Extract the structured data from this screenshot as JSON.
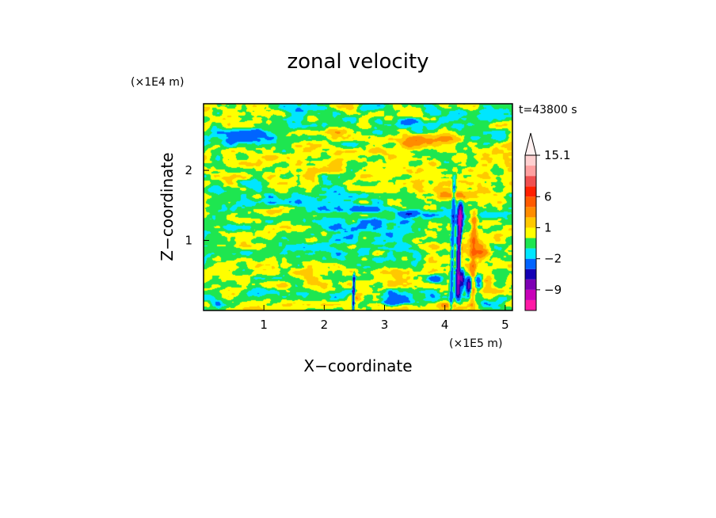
{
  "chart_data": {
    "type": "heatmap",
    "title": "zonal velocity",
    "xlabel": "X−coordinate",
    "ylabel": "Z−coordinate",
    "x_scale_label": "(×1E5 m)",
    "y_scale_label": "(×1E4 m)",
    "time_label": "t=43800 s",
    "xlim": [
      0,
      5.12
    ],
    "ylim": [
      0,
      2.95
    ],
    "x_ticks": [
      1,
      2,
      3,
      4,
      5
    ],
    "y_ticks": [
      1,
      2
    ],
    "colorbar": {
      "levels": [
        -15,
        -12,
        -9,
        -6,
        -4,
        -2,
        -1,
        0,
        1,
        2,
        4,
        6,
        9,
        12,
        15.1
      ],
      "colors": [
        "#ff1aa5",
        "#c800b8",
        "#7d00b4",
        "#1400b4",
        "#0064ff",
        "#00e6ff",
        "#1ee650",
        "#ffff00",
        "#ffc800",
        "#ff8c00",
        "#ff5a00",
        "#ff2000",
        "#f05050",
        "#ffa0a0",
        "#ffd0d0"
      ],
      "labels": [
        {
          "value": 15.1,
          "text": "15.1"
        },
        {
          "value": 6,
          "text": "6"
        },
        {
          "value": 1,
          "text": "1"
        },
        {
          "value": -2,
          "text": "−2"
        },
        {
          "value": -9,
          "text": "−9"
        }
      ],
      "extend_max": true
    },
    "features": [
      {
        "kind": "band",
        "x0": 0.0,
        "x1": 5.12,
        "z": 0.15,
        "thick": 0.1,
        "value": -1.5
      },
      {
        "kind": "band",
        "x0": 0.0,
        "x1": 3.6,
        "z": 0.75,
        "thick": 0.2,
        "value": -1.0
      },
      {
        "kind": "band",
        "x0": 0.0,
        "x1": 5.12,
        "z": 1.35,
        "thick": 0.22,
        "value": -1.2
      },
      {
        "kind": "band",
        "x0": 0.0,
        "x1": 3.0,
        "z": 1.65,
        "thick": 0.18,
        "value": -1.0
      },
      {
        "kind": "band",
        "x0": 0.0,
        "x1": 5.12,
        "z": 2.55,
        "thick": 0.15,
        "value": -1.0
      },
      {
        "kind": "band",
        "x0": 1.3,
        "x1": 5.12,
        "z": 2.85,
        "thick": 0.1,
        "value": -1.2
      },
      {
        "kind": "band",
        "x0": 2.0,
        "x1": 3.7,
        "z": 1.15,
        "thick": 0.18,
        "value": -1.0
      },
      {
        "kind": "blob",
        "x": 0.8,
        "z": 2.45,
        "rx": 0.45,
        "rz": 0.1,
        "value": -3
      },
      {
        "kind": "blob",
        "x": 2.6,
        "z": 1.45,
        "rx": 0.3,
        "rz": 0.06,
        "value": -3
      },
      {
        "kind": "blob",
        "x": 3.4,
        "z": 1.38,
        "rx": 0.25,
        "rz": 0.05,
        "value": -3
      },
      {
        "kind": "blob",
        "x": 3.4,
        "z": 2.7,
        "rx": 0.2,
        "rz": 0.05,
        "value": -3
      },
      {
        "kind": "blob",
        "x": 3.2,
        "z": 0.12,
        "rx": 0.3,
        "rz": 0.05,
        "value": -3
      },
      {
        "kind": "blob",
        "x": 3.85,
        "z": 0.45,
        "rx": 0.12,
        "rz": 0.08,
        "value": -3
      },
      {
        "kind": "blob",
        "x": 3.9,
        "z": 2.45,
        "rx": 0.4,
        "rz": 0.12,
        "value": 2
      },
      {
        "kind": "blob",
        "x": 3.45,
        "z": 2.4,
        "rx": 0.25,
        "rz": 0.1,
        "value": 2.5
      },
      {
        "kind": "blob",
        "x": 2.15,
        "z": 2.55,
        "rx": 0.25,
        "rz": 0.08,
        "value": 2
      },
      {
        "kind": "blob",
        "x": 1.05,
        "z": 1.42,
        "rx": 0.35,
        "rz": 0.07,
        "value": 2
      },
      {
        "kind": "blob",
        "x": 4.1,
        "z": 1.65,
        "rx": 0.35,
        "rz": 0.08,
        "value": 2
      },
      {
        "kind": "blob",
        "x": 4.0,
        "z": 0.08,
        "rx": 0.3,
        "rz": 0.05,
        "value": 2
      },
      {
        "kind": "blob",
        "x": 2.55,
        "z": 0.2,
        "rx": 0.1,
        "rz": 0.08,
        "value": 2.5
      },
      {
        "kind": "vstreak",
        "x": 4.1,
        "z0": 0.0,
        "z1": 1.9,
        "w": 0.03,
        "value": -3
      },
      {
        "kind": "vstreak",
        "x": 4.22,
        "z0": 0.2,
        "z1": 1.5,
        "w": 0.04,
        "value": -10
      },
      {
        "kind": "vstreak",
        "x": 4.25,
        "z0": 0.3,
        "z1": 1.1,
        "w": 0.03,
        "value": 5
      },
      {
        "kind": "vstreak",
        "x": 4.45,
        "z0": 0.1,
        "z1": 1.4,
        "w": 0.05,
        "value": 3
      },
      {
        "kind": "vstreak",
        "x": 2.48,
        "z0": 0.0,
        "z1": 0.5,
        "w": 0.02,
        "value": -6
      },
      {
        "kind": "blob",
        "x": 4.4,
        "z": 0.35,
        "rx": 0.05,
        "rz": 0.12,
        "value": -8
      },
      {
        "kind": "blob",
        "x": 4.28,
        "z": 0.45,
        "rx": 0.04,
        "rz": 0.15,
        "value": -7
      },
      {
        "kind": "blob",
        "x": 4.55,
        "z": 0.4,
        "rx": 0.08,
        "rz": 0.12,
        "value": -3
      },
      {
        "kind": "blob",
        "x": 4.6,
        "z": 0.85,
        "rx": 0.12,
        "rz": 0.15,
        "value": 3
      },
      {
        "kind": "blob",
        "x": 4.7,
        "z": 0.4,
        "rx": 0.1,
        "rz": 0.1,
        "value": 2
      }
    ]
  }
}
